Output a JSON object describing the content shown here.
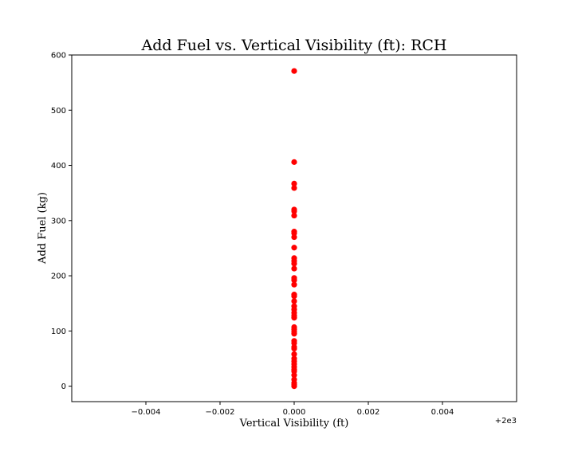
{
  "chart_data": {
    "type": "scatter",
    "title": "Add Fuel vs. Vertical Visibility (ft): RCH",
    "xlabel": "Vertical Visibility (ft)",
    "ylabel": "Add Fuel (kg)",
    "x_offset_label": "+2e3",
    "xlim": [
      -0.006,
      0.006
    ],
    "ylim": [
      -28,
      600
    ],
    "x_ticks": [
      -0.004,
      -0.002,
      0.0,
      0.002,
      0.004
    ],
    "x_tick_labels": [
      "−0.004",
      "−0.002",
      "0.000",
      "0.002",
      "0.004"
    ],
    "y_ticks": [
      0,
      100,
      200,
      300,
      400,
      500,
      600
    ],
    "y_tick_labels": [
      "0",
      "100",
      "200",
      "300",
      "400",
      "500",
      "600"
    ],
    "grid": false,
    "marker_color": "#ff0000",
    "points": {
      "x": [
        2000,
        2000,
        2000,
        2000,
        2000,
        2000,
        2000,
        2000,
        2000,
        2000,
        2000,
        2000,
        2000,
        2000,
        2000,
        2000,
        2000,
        2000,
        2000,
        2000,
        2000,
        2000,
        2000,
        2000,
        2000,
        2000,
        2000,
        2000,
        2000,
        2000,
        2000,
        2000,
        2000,
        2000,
        2000,
        2000,
        2000,
        2000,
        2000,
        2000,
        2000,
        2000,
        2000,
        2000,
        2000,
        2000
      ],
      "y": [
        571,
        406,
        367,
        359,
        320,
        317,
        309,
        280,
        277,
        270,
        251,
        232,
        227,
        222,
        213,
        196,
        192,
        184,
        166,
        163,
        154,
        145,
        139,
        133,
        128,
        124,
        107,
        103,
        99,
        95,
        82,
        78,
        71,
        68,
        58,
        50,
        45,
        40,
        35,
        30,
        27,
        20,
        12,
        6,
        3,
        0
      ]
    }
  }
}
